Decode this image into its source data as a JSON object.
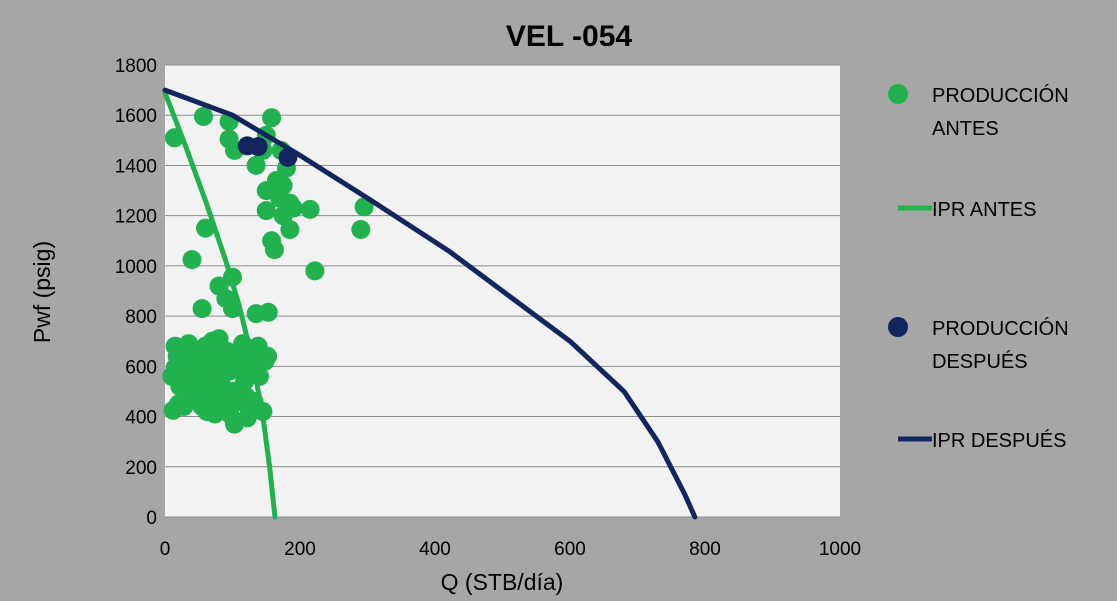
{
  "chart_data": {
    "type": "scatter",
    "title": "VEL -054",
    "xlabel": "Q (STB/día)",
    "ylabel": "Pwf (psig)",
    "xlim": [
      0,
      1000
    ],
    "ylim": [
      0,
      1800
    ],
    "x_ticks": [
      "0",
      "200",
      "400",
      "600",
      "800",
      "1000"
    ],
    "y_ticks": [
      "0",
      "200",
      "400",
      "600",
      "800",
      "1000",
      "1200",
      "1400",
      "1600",
      "1800"
    ],
    "grid": true,
    "legend_position": "right",
    "series": [
      {
        "name": "PRODUCCIÓN ANTES",
        "kind": "scatter",
        "color": "#21b24f",
        "points": [
          [
            57,
            1595
          ],
          [
            95,
            1575
          ],
          [
            158,
            1590
          ],
          [
            14,
            1510
          ],
          [
            95,
            1505
          ],
          [
            103,
            1460
          ],
          [
            135,
            1400
          ],
          [
            150,
            1520
          ],
          [
            145,
            1460
          ],
          [
            172,
            1460
          ],
          [
            180,
            1390
          ],
          [
            165,
            1340
          ],
          [
            150,
            1300
          ],
          [
            175,
            1320
          ],
          [
            170,
            1270
          ],
          [
            185,
            1250
          ],
          [
            190,
            1230
          ],
          [
            175,
            1200
          ],
          [
            150,
            1220
          ],
          [
            215,
            1225
          ],
          [
            185,
            1145
          ],
          [
            290,
            1145
          ],
          [
            295,
            1235
          ],
          [
            158,
            1100
          ],
          [
            162,
            1065
          ],
          [
            222,
            980
          ],
          [
            60,
            1150
          ],
          [
            40,
            1025
          ],
          [
            100,
            955
          ],
          [
            80,
            920
          ],
          [
            90,
            870
          ],
          [
            100,
            830
          ],
          [
            55,
            830
          ],
          [
            135,
            810
          ],
          [
            153,
            815
          ],
          [
            10,
            560
          ],
          [
            15,
            595
          ],
          [
            15,
            680
          ],
          [
            18,
            640
          ],
          [
            20,
            450
          ],
          [
            25,
            590
          ],
          [
            30,
            630
          ],
          [
            35,
            520
          ],
          [
            35,
            690
          ],
          [
            40,
            470
          ],
          [
            45,
            560
          ],
          [
            50,
            640
          ],
          [
            55,
            600
          ],
          [
            55,
            440
          ],
          [
            60,
            680
          ],
          [
            65,
            520
          ],
          [
            65,
            660
          ],
          [
            70,
            700
          ],
          [
            70,
            480
          ],
          [
            75,
            440
          ],
          [
            80,
            560
          ],
          [
            80,
            710
          ],
          [
            85,
            620
          ],
          [
            88,
            510
          ],
          [
            90,
            460
          ],
          [
            92,
            660
          ],
          [
            95,
            580
          ],
          [
            100,
            620
          ],
          [
            100,
            500
          ],
          [
            103,
            370
          ],
          [
            110,
            600
          ],
          [
            115,
            690
          ],
          [
            118,
            540
          ],
          [
            120,
            480
          ],
          [
            122,
            395
          ],
          [
            125,
            430
          ],
          [
            128,
            640
          ],
          [
            132,
            460
          ],
          [
            135,
            580
          ],
          [
            138,
            680
          ],
          [
            140,
            560
          ],
          [
            145,
            420
          ],
          [
            148,
            620
          ],
          [
            152,
            640
          ],
          [
            12,
            425
          ],
          [
            28,
            440
          ],
          [
            42,
            600
          ],
          [
            48,
            540
          ],
          [
            58,
            500
          ],
          [
            68,
            580
          ],
          [
            72,
            620
          ],
          [
            78,
            540
          ],
          [
            83,
            450
          ],
          [
            96,
            410
          ],
          [
            106,
            640
          ],
          [
            112,
            460
          ],
          [
            22,
            520
          ],
          [
            33,
            570
          ],
          [
            62,
            420
          ],
          [
            74,
            410
          ]
        ]
      },
      {
        "name": "IPR ANTES",
        "kind": "line",
        "color": "#21b24f",
        "points": [
          [
            0,
            1690
          ],
          [
            30,
            1480
          ],
          [
            60,
            1260
          ],
          [
            90,
            1020
          ],
          [
            110,
            840
          ],
          [
            130,
            620
          ],
          [
            145,
            400
          ],
          [
            155,
            200
          ],
          [
            163,
            0
          ]
        ]
      },
      {
        "name": "PRODUCCIÓN DESPUÉS",
        "kind": "scatter",
        "color": "#13245e",
        "points": [
          [
            122,
            1478
          ],
          [
            138,
            1475
          ],
          [
            182,
            1432
          ]
        ]
      },
      {
        "name": "IPR DESPUÉS",
        "kind": "line",
        "color": "#13245e",
        "points": [
          [
            0,
            1700
          ],
          [
            100,
            1600
          ],
          [
            200,
            1440
          ],
          [
            300,
            1270
          ],
          [
            420,
            1060
          ],
          [
            500,
            900
          ],
          [
            600,
            700
          ],
          [
            680,
            500
          ],
          [
            730,
            300
          ],
          [
            770,
            90
          ],
          [
            785,
            0
          ]
        ]
      }
    ]
  }
}
